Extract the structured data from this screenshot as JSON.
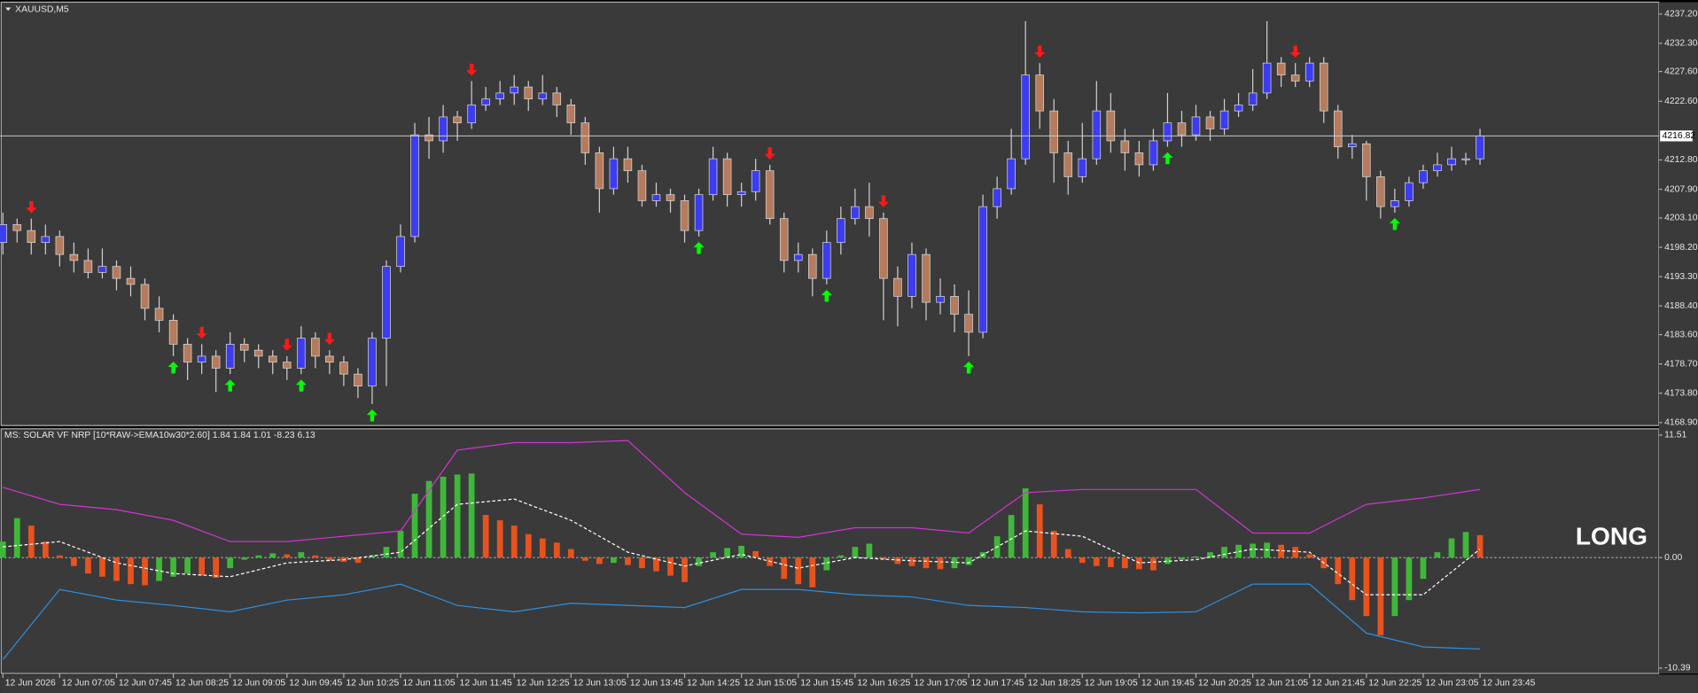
{
  "chart_data": [
    {
      "type": "candlestick",
      "title": "XAUUSD,M5",
      "xlim": [
        -0.2,
        116.6
      ],
      "ylim": [
        4168.4,
        4239.0
      ],
      "yticks": [
        {
          "value": 4237.2,
          "label": "4237.20"
        },
        {
          "value": 4232.3,
          "label": "4232.30"
        },
        {
          "value": 4227.6,
          "label": "4227.60"
        },
        {
          "value": 4222.6,
          "label": "4222.60"
        },
        {
          "value": 4212.8,
          "label": "4212.80"
        },
        {
          "value": 4207.9,
          "label": "4207.90"
        },
        {
          "value": 4203.1,
          "label": "4203.10"
        },
        {
          "value": 4198.2,
          "label": "4198.20"
        },
        {
          "value": 4193.3,
          "label": "4193.30"
        },
        {
          "value": 4188.4,
          "label": "4188.40"
        },
        {
          "value": 4183.6,
          "label": "4183.60"
        },
        {
          "value": 4178.7,
          "label": "4178.70"
        },
        {
          "value": 4173.8,
          "label": "4173.80"
        },
        {
          "value": 4168.9,
          "label": "4168.90"
        }
      ],
      "current_price": {
        "value": 4216.82,
        "label": "4216.82"
      },
      "up_color": "#3c3cf0",
      "down_color": "#b57b5c",
      "buy_color": "#00ff00",
      "sell_color": "#ff1a1a",
      "open": [
        4199,
        4202,
        4201,
        4199,
        4200,
        4197,
        4196,
        4194,
        4195,
        4193,
        4192,
        4188,
        4186,
        4182,
        4179,
        4180,
        4178,
        4182,
        4181,
        4180,
        4179,
        4178,
        4183,
        4180,
        4179,
        4177,
        4175,
        4183,
        4195,
        4200,
        4217,
        4216,
        4220,
        4219,
        4222,
        4223,
        4224,
        4225,
        4223,
        4224,
        4222,
        4219,
        4214,
        4208,
        4213,
        4211,
        4206,
        4207,
        4206,
        4201,
        4207,
        4213,
        4207,
        4207.5,
        4211,
        4203,
        4196,
        4197,
        4193,
        4199,
        4203,
        4205,
        4203,
        4193,
        4190,
        4197,
        4189,
        4190,
        4187,
        4184,
        4205,
        4208,
        4213,
        4227,
        4221,
        4214,
        4210,
        4213,
        4221,
        4216,
        4214,
        4212,
        4216,
        4219,
        4217,
        4220,
        4218,
        4221,
        4222,
        4224,
        4229,
        4227,
        4226,
        4229,
        4221,
        4215,
        4215.5,
        4210,
        4205,
        4206,
        4209,
        4211,
        4212,
        4213,
        4213
      ],
      "high": [
        4204,
        4203,
        4203,
        4202,
        4201,
        4199,
        4198,
        4198,
        4196,
        4195,
        4193,
        4190,
        4187,
        4183,
        4182,
        4181,
        4184,
        4183,
        4182,
        4181,
        4180,
        4185,
        4184,
        4181,
        4180,
        4178,
        4184,
        4196,
        4202,
        4219,
        4220,
        4222,
        4221,
        4226,
        4225,
        4226,
        4227,
        4226,
        4227,
        4225,
        4223,
        4220,
        4215,
        4215,
        4215,
        4212,
        4209,
        4208,
        4207,
        4208,
        4215,
        4214,
        4209,
        4213,
        4212,
        4204,
        4199,
        4198,
        4201,
        4205,
        4208,
        4209,
        4204,
        4195,
        4199,
        4198,
        4193,
        4192,
        4191,
        4207,
        4210,
        4218,
        4236,
        4229,
        4223,
        4216,
        4219,
        4226,
        4224,
        4218,
        4216,
        4218,
        4224,
        4221,
        4222,
        4221,
        4223,
        4224,
        4228,
        4236,
        4230,
        4229,
        4230,
        4230,
        4222,
        4217,
        4216,
        4211,
        4208,
        4210,
        4212,
        4214,
        4215,
        4214,
        4218
      ],
      "low": [
        4197,
        4199,
        4197,
        4197,
        4195,
        4194,
        4193,
        4193,
        4191,
        4190,
        4186,
        4184,
        4180,
        4176,
        4177,
        4174,
        4177,
        4179,
        4178,
        4177,
        4176,
        4177,
        4178,
        4177,
        4175,
        4173,
        4172,
        4175,
        4194,
        4199,
        4213,
        4214,
        4216,
        4218,
        4221,
        4222,
        4222,
        4221,
        4222,
        4220,
        4217,
        4212,
        4204,
        4207,
        4209,
        4205,
        4205,
        4204,
        4199,
        4200,
        4206,
        4205,
        4205,
        4206,
        4202,
        4194,
        4194,
        4190,
        4192,
        4197,
        4202,
        4200,
        4186,
        4185,
        4188,
        4186,
        4187,
        4184,
        4180,
        4183,
        4203,
        4207,
        4212,
        4218,
        4209,
        4207,
        4209,
        4212,
        4214,
        4211,
        4210,
        4211,
        4215,
        4215,
        4216,
        4216,
        4217,
        4220,
        4221,
        4223,
        4225,
        4225,
        4225,
        4219,
        4213,
        4213,
        4206,
        4203,
        4204,
        4205,
        4208,
        4210,
        4211,
        4212,
        4212
      ],
      "close": [
        4202,
        4201,
        4199,
        4200,
        4197,
        4196,
        4194,
        4195,
        4193,
        4192,
        4188,
        4186,
        4182,
        4179,
        4180,
        4178,
        4182,
        4181,
        4180,
        4179,
        4178,
        4183,
        4180,
        4179,
        4177,
        4175,
        4183,
        4195,
        4200,
        4217,
        4216,
        4220,
        4219,
        4222,
        4223,
        4224,
        4225,
        4223,
        4224,
        4222,
        4219,
        4214,
        4208,
        4213,
        4211,
        4206,
        4207,
        4206,
        4201,
        4207,
        4213,
        4207,
        4207.5,
        4211,
        4203,
        4196,
        4197,
        4193,
        4199,
        4203,
        4205,
        4203,
        4193,
        4190,
        4197,
        4189,
        4190,
        4187,
        4184,
        4205,
        4208,
        4213,
        4227,
        4221,
        4214,
        4210,
        4213,
        4221,
        4216,
        4214,
        4212,
        4216,
        4219,
        4217,
        4220,
        4218,
        4221,
        4222,
        4224,
        4229,
        4227,
        4226,
        4229,
        4221,
        4215,
        4215.5,
        4210,
        4205,
        4206,
        4209,
        4211,
        4212,
        4213,
        4213,
        4216.82
      ],
      "buy_signals": [
        12,
        16,
        21,
        26,
        49,
        58,
        68,
        82,
        98
      ],
      "sell_signals": [
        2,
        14,
        20,
        23,
        33,
        54,
        62,
        73,
        91
      ]
    },
    {
      "type": "histogram",
      "title": "MS: SOLAR VF NRP [10*RAW->EMA10w30*2.60] 1.84 1.84 1.01 -8.23 6.13",
      "annotation": "LONG",
      "xlim": [
        -0.2,
        116.6
      ],
      "ylim": [
        -10.9,
        12.0
      ],
      "yticks": [
        11.51,
        {
          "value": 0,
          "label": "0.00"
        },
        -10.39
      ],
      "xticks": [
        {
          "value": 0,
          "label": "12 Jun 2026"
        },
        {
          "value": 4,
          "label": "12 Jun 07:05"
        },
        {
          "value": 8,
          "label": "12 Jun 07:45"
        },
        {
          "value": 12,
          "label": "12 Jun 08:25"
        },
        {
          "value": 16,
          "label": "12 Jun 09:05"
        },
        {
          "value": 20,
          "label": "12 Jun 09:45"
        },
        {
          "value": 24,
          "label": "12 Jun 10:25"
        },
        {
          "value": 28,
          "label": "12 Jun 11:05"
        },
        {
          "value": 32,
          "label": "12 Jun 11:45"
        },
        {
          "value": 36,
          "label": "12 Jun 12:25"
        },
        {
          "value": 40,
          "label": "12 Jun 13:05"
        },
        {
          "value": 44,
          "label": "12 Jun 13:45"
        },
        {
          "value": 48,
          "label": "12 Jun 14:25"
        },
        {
          "value": 52,
          "label": "12 Jun 15:05"
        },
        {
          "value": 56,
          "label": "12 Jun 15:45"
        },
        {
          "value": 60,
          "label": "12 Jun 16:25"
        },
        {
          "value": 64,
          "label": "12 Jun 17:05"
        },
        {
          "value": 68,
          "label": "12 Jun 17:45"
        },
        {
          "value": 72,
          "label": "12 Jun 18:25"
        },
        {
          "value": 76,
          "label": "12 Jun 19:05"
        },
        {
          "value": 80,
          "label": "12 Jun 19:45"
        },
        {
          "value": 84,
          "label": "12 Jun 20:25"
        },
        {
          "value": 88,
          "label": "12 Jun 21:05"
        },
        {
          "value": 92,
          "label": "12 Jun 21:45"
        },
        {
          "value": 96,
          "label": "12 Jun 22:25"
        },
        {
          "value": 100,
          "label": "12 Jun 23:05"
        },
        {
          "value": 104,
          "label": "12 Jun 23:45"
        }
      ],
      "rising_color": "#3fb83a",
      "falling_color": "#e8531d",
      "values": [
        1.5,
        3.7,
        3.0,
        1.5,
        0.2,
        -0.8,
        -1.5,
        -1.8,
        -2.2,
        -2.5,
        -2.6,
        -2.2,
        -1.8,
        -1.5,
        -1.7,
        -1.9,
        -1.0,
        -0.2,
        0.2,
        0.4,
        0.3,
        0.5,
        0.2,
        -0.3,
        -0.4,
        -0.5,
        0.2,
        1.0,
        2.5,
        6.0,
        7.2,
        7.6,
        7.8,
        7.9,
        4.0,
        3.5,
        3.0,
        2.2,
        1.8,
        1.4,
        0.8,
        -0.3,
        -0.6,
        -0.5,
        -0.7,
        -1.0,
        -1.3,
        -1.7,
        -2.3,
        -0.8,
        0.5,
        0.9,
        1.1,
        0.6,
        -0.8,
        -2.0,
        -2.5,
        -2.8,
        -1.2,
        0.2,
        1.0,
        1.3,
        -0.2,
        -0.6,
        -0.8,
        -1.0,
        -1.1,
        -1.0,
        -0.7,
        0.5,
        2.0,
        4.0,
        6.5,
        5.0,
        2.5,
        0.8,
        -0.5,
        -0.8,
        -0.9,
        -1.0,
        -1.1,
        -1.2,
        -0.6,
        -0.2,
        0.1,
        0.5,
        1.0,
        1.2,
        1.3,
        1.4,
        1.2,
        1.0,
        0.3,
        -1.0,
        -2.5,
        -4.0,
        -5.5,
        -7.3,
        -5.5,
        -4.0,
        -2.0,
        0.5,
        1.8,
        2.4,
        2.1
      ],
      "line_x": [
        0,
        4,
        8,
        12,
        16,
        20,
        24,
        28,
        32,
        36,
        40,
        44,
        48,
        52,
        56,
        60,
        64,
        68,
        72,
        76,
        80,
        84,
        88,
        92,
        96,
        100,
        104
      ],
      "lines": [
        {
          "color": "#d433d4",
          "dashed": false,
          "values": [
            6.6,
            5.0,
            4.5,
            3.5,
            1.5,
            1.5,
            2.0,
            2.5,
            10.1,
            10.8,
            10.8,
            11.0,
            6.1,
            2.2,
            1.9,
            2.8,
            2.8,
            2.3,
            6.1,
            6.4,
            6.4,
            6.4,
            2.3,
            2.3,
            5.0,
            5.6,
            6.4
          ]
        },
        {
          "color": "#2e8fe0",
          "dashed": false,
          "values": [
            -9.6,
            -3.0,
            -4.0,
            -4.5,
            -5.1,
            -4.0,
            -3.5,
            -2.5,
            -4.5,
            -5.1,
            -4.3,
            -4.5,
            -4.7,
            -3.0,
            -3.0,
            -3.5,
            -3.7,
            -4.5,
            -4.7,
            -5.1,
            -5.2,
            -5.1,
            -2.5,
            -2.5,
            -7.1,
            -8.4,
            -8.6
          ]
        },
        {
          "color": "#ffffff",
          "dashed": true,
          "values": [
            1.0,
            1.5,
            -0.5,
            -1.5,
            -1.8,
            -0.5,
            -0.2,
            0.5,
            5.0,
            5.5,
            3.5,
            0.5,
            -0.8,
            0.3,
            -1.0,
            0.0,
            -0.3,
            -0.5,
            2.5,
            2.0,
            -0.5,
            -0.2,
            0.8,
            0.5,
            -3.5,
            -3.5,
            0.8
          ]
        }
      ]
    }
  ]
}
